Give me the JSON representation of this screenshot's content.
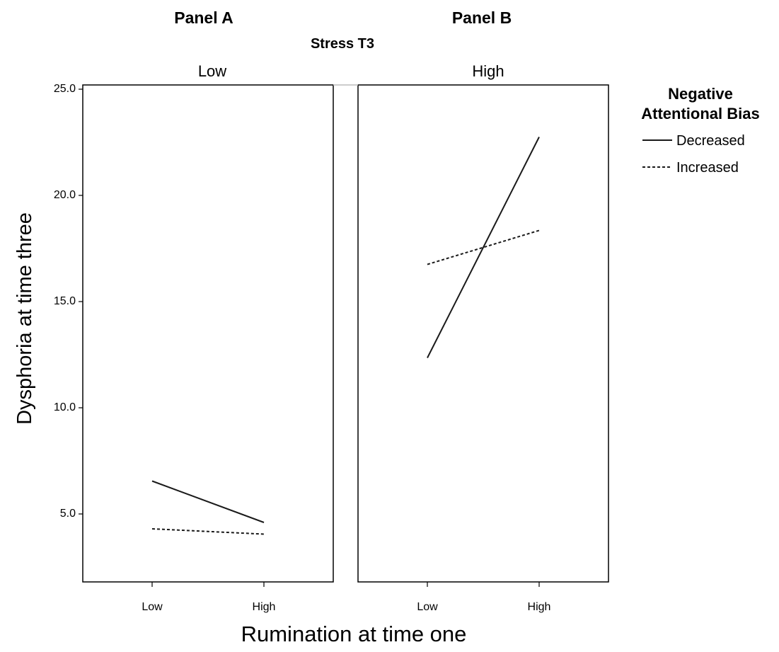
{
  "panel_titles": [
    "Panel A",
    "Panel B"
  ],
  "facet_title": "Stress T3",
  "legend": {
    "title_line1": "Negative",
    "title_line2": "Attentional Bias",
    "items": [
      {
        "label": "Decreased",
        "style": "solid"
      },
      {
        "label": "Increased",
        "style": "dashed"
      }
    ]
  },
  "colors": {
    "line": "#1a1a1a",
    "axis": "#000000"
  },
  "chart_data": {
    "type": "line",
    "xlabel": "Rumination at time one",
    "ylabel": "Dysphoria at time three",
    "ylim": [
      1.8,
      25.2
    ],
    "yticks": [
      "5.0",
      "10.0",
      "15.0",
      "20.0",
      "25.0"
    ],
    "ytick_values": [
      5,
      10,
      15,
      20,
      25
    ],
    "categories": [
      "Low",
      "High"
    ],
    "panels": [
      {
        "facet_label": "Low",
        "series": [
          {
            "name": "Decreased",
            "values": [
              6.55,
              4.6
            ]
          },
          {
            "name": "Increased",
            "values": [
              4.3,
              4.05
            ]
          }
        ]
      },
      {
        "facet_label": "High",
        "series": [
          {
            "name": "Decreased",
            "values": [
              12.35,
              22.75
            ]
          },
          {
            "name": "Increased",
            "values": [
              16.75,
              18.35
            ]
          }
        ]
      }
    ],
    "grid": false,
    "legend_position": "right"
  }
}
